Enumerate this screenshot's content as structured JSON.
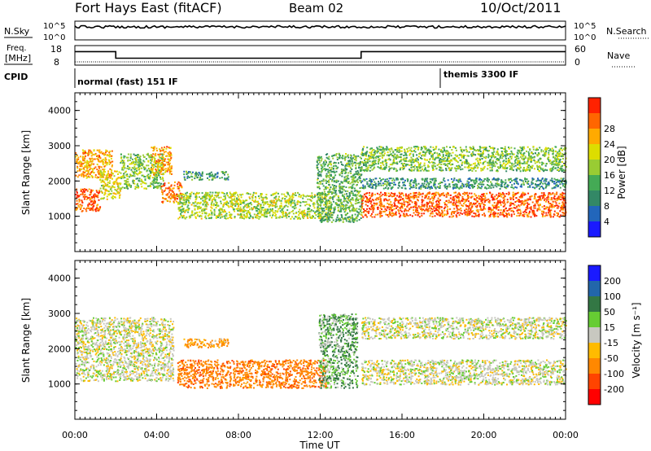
{
  "header": {
    "station": "Fort Hays East (fitACF)",
    "beam": "Beam 02",
    "date": "10/Oct/2011"
  },
  "noise_panel": {
    "left_label": "N.Sky",
    "right_label": "N.Search",
    "left_ticks": [
      "10^5",
      "10^0"
    ],
    "right_ticks": [
      "10^5",
      "10^0"
    ]
  },
  "freq_panel": {
    "left_label_1": "Freq.",
    "left_label_2": "[MHz]",
    "left_ticks": [
      "18",
      "8"
    ],
    "right_label": "Nave",
    "right_ticks": [
      "60",
      "0"
    ],
    "freq_steps": [
      {
        "start_h": 0,
        "end_h": 2.0,
        "mhz": 15
      },
      {
        "start_h": 2.0,
        "end_h": 14.0,
        "mhz": 10.5
      },
      {
        "start_h": 14.0,
        "end_h": 24.0,
        "mhz": 15
      }
    ]
  },
  "cpid_panel": {
    "label": "CPID",
    "modes": [
      {
        "start_h": 0,
        "label": "normal (fast) 151 IF"
      },
      {
        "start_h": 18.0,
        "label": "themis 3300 IF"
      }
    ]
  },
  "colors": {
    "power": [
      "#1a1aff",
      "#2266bb",
      "#338866",
      "#44aa55",
      "#99cc33",
      "#dddd00",
      "#ffaa00",
      "#ff6600",
      "#ff2200"
    ],
    "velocity": [
      "#1a1aff",
      "#2266aa",
      "#337744",
      "#66cc33",
      "#c8c8c0",
      "#ffbb00",
      "#ff8800",
      "#ff4400",
      "#ff0000"
    ]
  },
  "chart_data": [
    {
      "type": "heatmap",
      "name": "power",
      "ylabel": "Slant Range [km]",
      "yticks": [
        "1000",
        "2000",
        "3000",
        "4000"
      ],
      "ylim": [
        0,
        4500
      ],
      "colorbar_label": "Power [dB]",
      "colorbar_ticks": [
        "4",
        "8",
        "12",
        "16",
        "20",
        "24",
        "28"
      ],
      "clim": [
        0,
        30
      ],
      "regions": [
        {
          "t0": 0.0,
          "t1": 1.8,
          "r0": 2100,
          "r1": 2900,
          "db": 22
        },
        {
          "t0": 0.0,
          "t1": 1.2,
          "r0": 1150,
          "r1": 1800,
          "db": 26
        },
        {
          "t0": 1.2,
          "t1": 2.2,
          "r0": 1500,
          "r1": 2300,
          "db": 18
        },
        {
          "t0": 2.2,
          "t1": 4.3,
          "r0": 1800,
          "r1": 2800,
          "db": 14
        },
        {
          "t0": 3.7,
          "t1": 4.7,
          "r0": 2200,
          "r1": 3000,
          "db": 22
        },
        {
          "t0": 4.2,
          "t1": 5.2,
          "r0": 1400,
          "r1": 2000,
          "db": 24
        },
        {
          "t0": 5.0,
          "t1": 12.5,
          "r0": 950,
          "r1": 1700,
          "db": 16
        },
        {
          "t0": 5.3,
          "t1": 7.5,
          "r0": 2050,
          "r1": 2300,
          "db": 10
        },
        {
          "t0": 11.8,
          "t1": 14.0,
          "r0": 850,
          "r1": 2800,
          "db": 12
        },
        {
          "t0": 14.0,
          "t1": 24.0,
          "r0": 1000,
          "r1": 1700,
          "db": 26
        },
        {
          "t0": 14.0,
          "t1": 24.0,
          "r0": 2300,
          "r1": 3000,
          "db": 14
        },
        {
          "t0": 14.0,
          "t1": 24.0,
          "r0": 1800,
          "r1": 2100,
          "db": 9
        }
      ]
    },
    {
      "type": "heatmap",
      "name": "velocity",
      "ylabel": "Slant Range [km]",
      "yticks": [
        "1000",
        "2000",
        "3000",
        "4000"
      ],
      "ylim": [
        0,
        4500
      ],
      "colorbar_label": "Velocity [m s⁻¹]",
      "colorbar_ticks": [
        "200",
        "100",
        "50",
        "15",
        "-15",
        "-50",
        "-100",
        "-200"
      ],
      "clim": [
        -250,
        250
      ],
      "xlabel": "Time UT",
      "xticks": [
        "00:00",
        "04:00",
        "08:00",
        "12:00",
        "16:00",
        "20:00",
        "00:00"
      ],
      "xlim": [
        0,
        24
      ],
      "regions": [
        {
          "t0": 0.0,
          "t1": 4.8,
          "r0": 1100,
          "r1": 2900,
          "v": 0
        },
        {
          "t0": 5.0,
          "t1": 12.3,
          "r0": 900,
          "r1": 1700,
          "v": -60
        },
        {
          "t0": 5.3,
          "t1": 7.5,
          "r0": 2050,
          "r1": 2300,
          "v": -40
        },
        {
          "t0": 11.9,
          "t1": 13.8,
          "r0": 900,
          "r1": 3000,
          "v": 30
        },
        {
          "t0": 14.0,
          "t1": 24.0,
          "r0": 1000,
          "r1": 1700,
          "v": 0
        },
        {
          "t0": 14.0,
          "t1": 24.0,
          "r0": 2300,
          "r1": 2900,
          "v": 0
        }
      ]
    }
  ]
}
